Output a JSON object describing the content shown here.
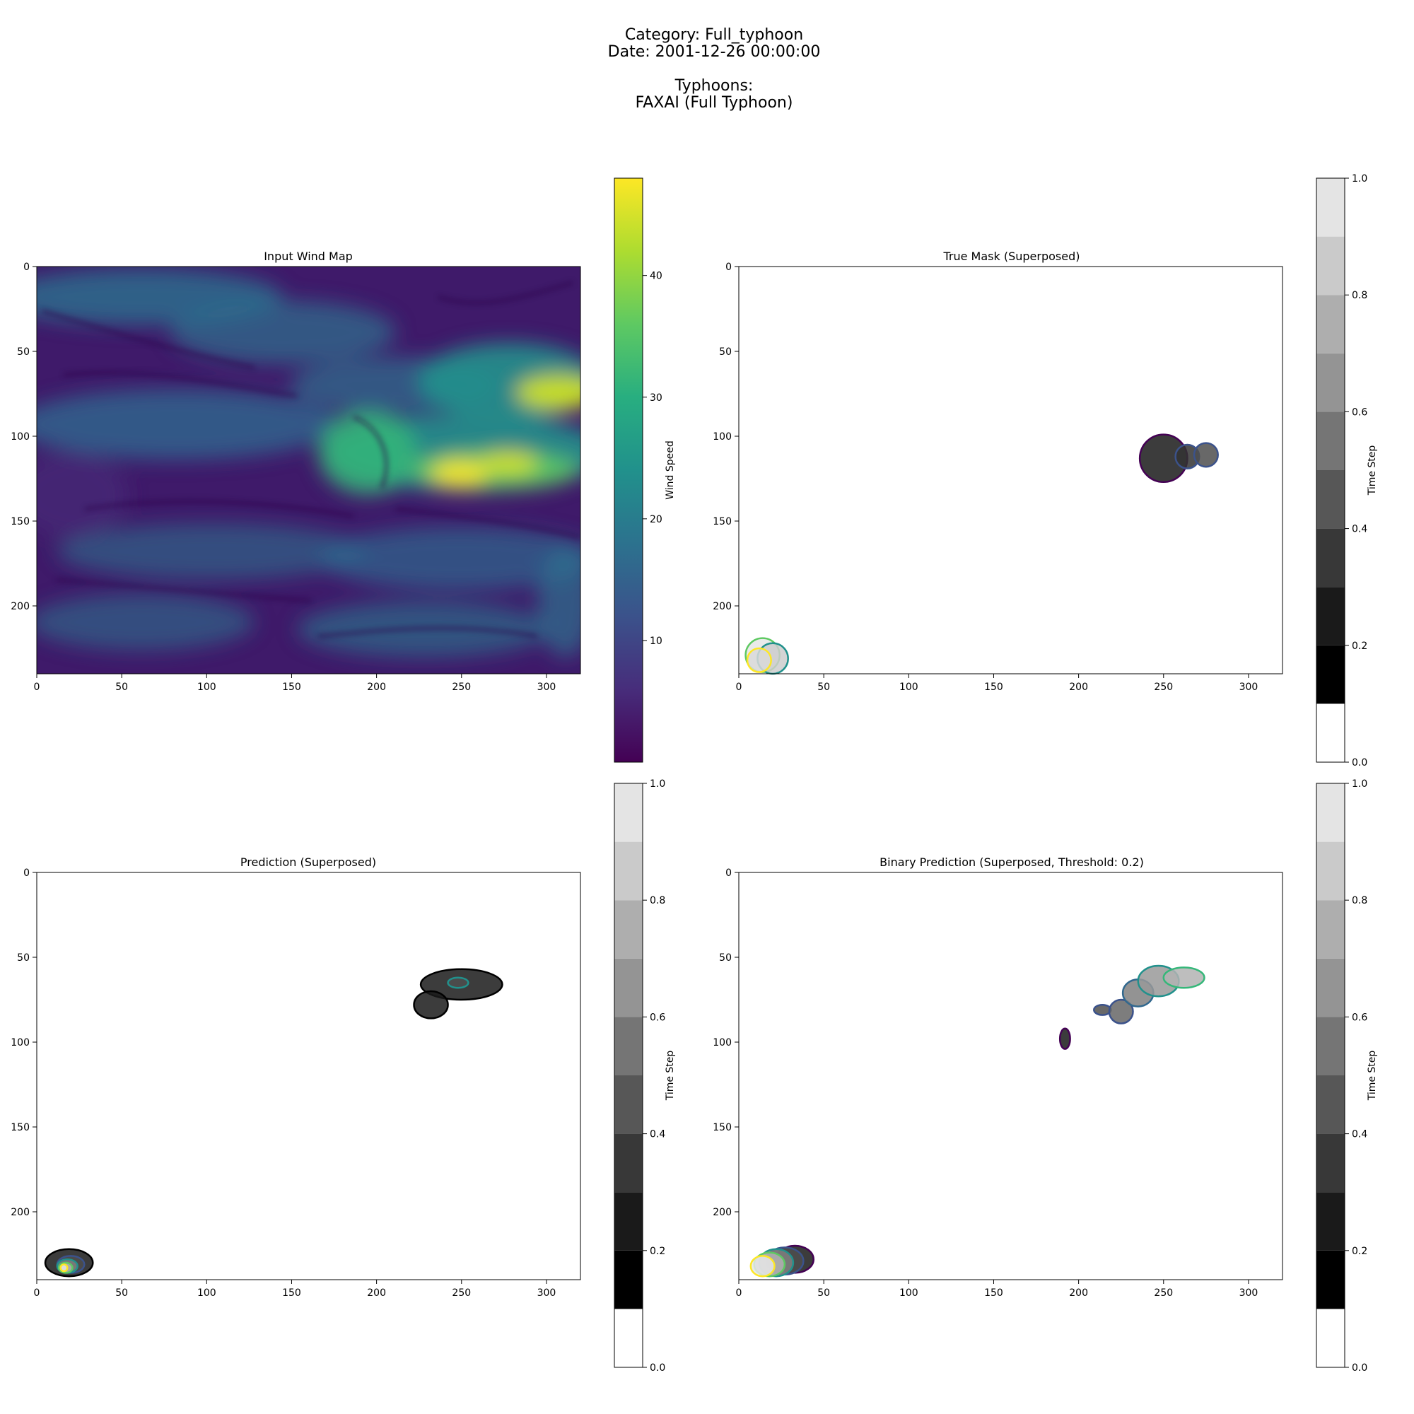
{
  "header": {
    "category_line": "Category: Full_typhoon",
    "date_line": "Date: 2001-12-26 00:00:00",
    "typhoons_heading": "Typhoons:",
    "typhoons_line": "FAXAI (Full Typhoon)"
  },
  "chart_data": [
    {
      "type": "heatmap",
      "title": "Input Wind Map",
      "xlim": [
        0,
        320
      ],
      "ylim": [
        240,
        0
      ],
      "xticks": [
        0,
        50,
        100,
        150,
        200,
        250,
        300
      ],
      "yticks": [
        0,
        50,
        100,
        150,
        200
      ],
      "colormap": "viridis",
      "colorbar": {
        "label": "Wind Speed",
        "range": [
          0,
          48
        ],
        "ticks": [
          10,
          20,
          30,
          40
        ]
      },
      "features": [
        {
          "kind": "jet",
          "description": "strong wind band",
          "x": [
            150,
            320
          ],
          "y": [
            105,
            130
          ],
          "peak": 47
        },
        {
          "kind": "jet",
          "x": [
            280,
            320
          ],
          "y": [
            65,
            90
          ],
          "peak": 46
        }
      ]
    },
    {
      "type": "heatmap",
      "title": "True Mask (Superposed)",
      "xlim": [
        0,
        320
      ],
      "ylim": [
        240,
        0
      ],
      "xticks": [
        0,
        50,
        100,
        150,
        200,
        250,
        300
      ],
      "yticks": [
        0,
        50,
        100,
        150,
        200
      ],
      "colormap": "gray (discrete, 10 levels)",
      "colorbar": {
        "label": "Time Step",
        "range": [
          0,
          1
        ],
        "ticks": [
          0.0,
          0.2,
          0.4,
          0.6,
          0.8,
          1.0
        ]
      },
      "regions": [
        {
          "cx": 250,
          "cy": 113,
          "r": 14,
          "shade": 0.1,
          "outline": "#440154"
        },
        {
          "cx": 264,
          "cy": 112,
          "r": 7,
          "shade": 0.2,
          "outline": "#3b528b"
        },
        {
          "cx": 275,
          "cy": 111,
          "r": 7,
          "shade": 0.3,
          "outline": "#3b528b"
        },
        {
          "cx": 14,
          "cy": 229,
          "r": 10,
          "shade": 0.9,
          "outline": "#5ec962"
        },
        {
          "cx": 20,
          "cy": 231,
          "r": 9,
          "shade": 0.8,
          "outline": "#21918c"
        },
        {
          "cx": 12,
          "cy": 232,
          "r": 7,
          "shade": 0.85,
          "outline": "#fde725"
        }
      ]
    },
    {
      "type": "heatmap",
      "title": "Prediction (Superposed)",
      "xlim": [
        0,
        320
      ],
      "ylim": [
        240,
        0
      ],
      "xticks": [
        0,
        50,
        100,
        150,
        200,
        250,
        300
      ],
      "yticks": [
        0,
        50,
        100,
        150,
        200
      ],
      "colormap": "gray (discrete, 10 levels)",
      "colorbar": {
        "label": "Time Step",
        "range": [
          0,
          1
        ],
        "ticks": [
          0.0,
          0.2,
          0.4,
          0.6,
          0.8,
          1.0
        ]
      },
      "regions": [
        {
          "cx": 250,
          "cy": 66,
          "rx": 24,
          "ry": 9,
          "shade": 0.1,
          "outline": "#000000"
        },
        {
          "cx": 232,
          "cy": 78,
          "rx": 10,
          "ry": 8,
          "shade": 0.1,
          "outline": "#000000"
        },
        {
          "cx": 248,
          "cy": 65,
          "rx": 6,
          "ry": 3,
          "shade": 0.3,
          "outline": "#21918c"
        },
        {
          "cx": 19,
          "cy": 230,
          "rx": 14,
          "ry": 8,
          "shade": 0.1,
          "outline": "#000000"
        },
        {
          "cx": 20,
          "cy": 231,
          "rx": 8,
          "ry": 5,
          "shade": 0.3,
          "outline": "#3b528b"
        },
        {
          "cx": 18,
          "cy": 232,
          "rx": 6,
          "ry": 4,
          "shade": 0.5,
          "outline": "#21918c"
        },
        {
          "cx": 17,
          "cy": 233,
          "rx": 4,
          "ry": 3,
          "shade": 0.7,
          "outline": "#5ec962"
        },
        {
          "cx": 16,
          "cy": 233,
          "rx": 2,
          "ry": 2,
          "shade": 0.9,
          "outline": "#fde725"
        }
      ]
    },
    {
      "type": "heatmap",
      "title": "Binary Prediction (Superposed, Threshold: 0.2)",
      "xlim": [
        0,
        320
      ],
      "ylim": [
        240,
        0
      ],
      "xticks": [
        0,
        50,
        100,
        150,
        200,
        250,
        300
      ],
      "yticks": [
        0,
        50,
        100,
        150,
        200
      ],
      "colormap": "gray (discrete, 10 levels)",
      "colorbar": {
        "label": "Time Step",
        "range": [
          0,
          1
        ],
        "ticks": [
          0.0,
          0.2,
          0.4,
          0.6,
          0.8,
          1.0
        ]
      },
      "regions": [
        {
          "cx": 192,
          "cy": 98,
          "rx": 3,
          "ry": 6,
          "shade": 0.1,
          "outline": "#440154"
        },
        {
          "cx": 214,
          "cy": 81,
          "rx": 5,
          "ry": 3,
          "shade": 0.3,
          "outline": "#3b528b"
        },
        {
          "cx": 225,
          "cy": 82,
          "rx": 7,
          "ry": 7,
          "shade": 0.4,
          "outline": "#3b528b"
        },
        {
          "cx": 235,
          "cy": 71,
          "rx": 9,
          "ry": 8,
          "shade": 0.5,
          "outline": "#31688e"
        },
        {
          "cx": 247,
          "cy": 64,
          "rx": 12,
          "ry": 9,
          "shade": 0.6,
          "outline": "#21918c"
        },
        {
          "cx": 262,
          "cy": 62,
          "rx": 12,
          "ry": 6,
          "shade": 0.7,
          "outline": "#35b779"
        },
        {
          "cx": 33,
          "cy": 228,
          "rx": 11,
          "ry": 8,
          "shade": 0.1,
          "outline": "#440154"
        },
        {
          "cx": 27,
          "cy": 229,
          "rx": 11,
          "ry": 8,
          "shade": 0.3,
          "outline": "#3b528b"
        },
        {
          "cx": 22,
          "cy": 230,
          "rx": 10,
          "ry": 8,
          "shade": 0.5,
          "outline": "#21918c"
        },
        {
          "cx": 18,
          "cy": 231,
          "rx": 9,
          "ry": 7,
          "shade": 0.7,
          "outline": "#5ec962"
        },
        {
          "cx": 14,
          "cy": 232,
          "rx": 7,
          "ry": 6,
          "shade": 0.9,
          "outline": "#fde725"
        }
      ]
    }
  ]
}
